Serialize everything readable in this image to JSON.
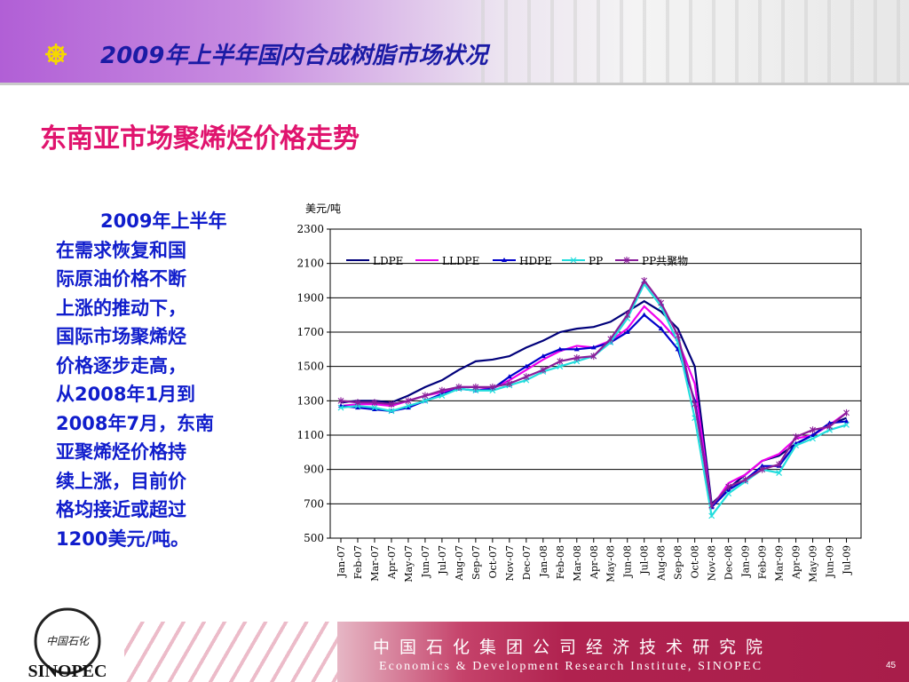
{
  "header": {
    "title": "2009年上半年国内合成树脂市场状况"
  },
  "subtitle": "东南亚市场聚烯烃价格走势",
  "body_lines": [
    "2009年上半年",
    "在需求恢复和国",
    "际原油价格不断",
    "上涨的推动下，",
    "国际市场聚烯烃",
    "价格逐步走高，",
    "从2008年1月到",
    "2008年7月，东南",
    "亚聚烯烃价格持",
    "续上涨，目前价",
    "格均接近或超过",
    "1200美元/吨。"
  ],
  "footer": {
    "cn": "中国石化集团公司经济技术研究院",
    "en": "Economics & Development Research Institute, SINOPEC",
    "page": "45"
  },
  "colors": {
    "title": "#1b1ba5",
    "subtitle": "#e0146e",
    "body": "#101dcc"
  },
  "chart_data": {
    "type": "line",
    "title": "",
    "ylabel": "美元/吨",
    "ylim": [
      500,
      2300
    ],
    "yticks": [
      500,
      700,
      900,
      1100,
      1300,
      1500,
      1700,
      1900,
      2100,
      2300
    ],
    "categories": [
      "Jan-07",
      "Feb-07",
      "Mar-07",
      "Apr-07",
      "May-07",
      "Jun-07",
      "Jul-07",
      "Aug-07",
      "Sep-07",
      "Oct-07",
      "Nov-07",
      "Dec-07",
      "Jan-08",
      "Feb-08",
      "Mar-08",
      "Apr-08",
      "May-08",
      "Jun-08",
      "Jul-08",
      "Aug-08",
      "Sep-08",
      "Oct-08",
      "Nov-08",
      "Dec-08",
      "Jan-09",
      "Feb-09",
      "Mar-09",
      "Apr-09",
      "May-09",
      "Jun-09",
      "Jul-09"
    ],
    "legend_position": "top",
    "grid": true,
    "series": [
      {
        "name": "LDPE",
        "color": "#00007a",
        "marker": "none",
        "values": [
          1290,
          1300,
          1300,
          1290,
          1330,
          1380,
          1420,
          1480,
          1530,
          1540,
          1560,
          1610,
          1650,
          1700,
          1720,
          1730,
          1760,
          1820,
          1880,
          1820,
          1720,
          1500,
          700,
          790,
          870,
          950,
          980,
          1050,
          1100,
          1160,
          1200
        ]
      },
      {
        "name": "LLDPE",
        "color": "#ee00ee",
        "marker": "none",
        "values": [
          1270,
          1280,
          1280,
          1270,
          1300,
          1330,
          1350,
          1380,
          1380,
          1370,
          1420,
          1480,
          1540,
          1590,
          1620,
          1610,
          1650,
          1720,
          1850,
          1760,
          1650,
          1400,
          680,
          820,
          870,
          950,
          990,
          1080,
          1100,
          1160,
          1230
        ]
      },
      {
        "name": "HDPE",
        "color": "#0000cc",
        "marker": "triangle",
        "values": [
          1270,
          1260,
          1250,
          1240,
          1260,
          1300,
          1340,
          1370,
          1360,
          1370,
          1440,
          1500,
          1560,
          1600,
          1600,
          1610,
          1640,
          1700,
          1800,
          1720,
          1600,
          1300,
          680,
          780,
          840,
          920,
          920,
          1050,
          1100,
          1170,
          1180
        ]
      },
      {
        "name": "PP",
        "color": "#22dddd",
        "marker": "x",
        "values": [
          1260,
          1270,
          1260,
          1240,
          1270,
          1300,
          1330,
          1370,
          1360,
          1360,
          1390,
          1420,
          1470,
          1500,
          1530,
          1560,
          1640,
          1780,
          1980,
          1850,
          1640,
          1200,
          630,
          760,
          830,
          900,
          880,
          1040,
          1080,
          1130,
          1160
        ]
      },
      {
        "name": "PP共聚物",
        "color": "#8a1e9a",
        "marker": "star",
        "values": [
          1300,
          1290,
          1290,
          1280,
          1300,
          1330,
          1360,
          1380,
          1380,
          1380,
          1400,
          1440,
          1480,
          1530,
          1550,
          1560,
          1660,
          1800,
          2000,
          1870,
          1680,
          1280,
          690,
          800,
          840,
          900,
          930,
          1090,
          1130,
          1150,
          1230
        ]
      }
    ]
  }
}
